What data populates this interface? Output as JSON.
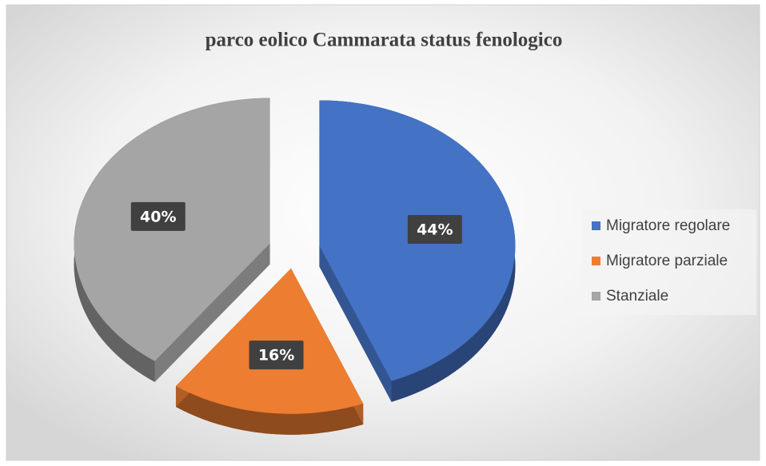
{
  "chart_data": {
    "type": "pie",
    "title": "parco eolico Cammarata status fenologico",
    "categories": [
      "Migratore regolare",
      "Migratore parziale",
      "Stanziale"
    ],
    "values": [
      44,
      16,
      40
    ],
    "value_labels": [
      "44%",
      "16%",
      "40%"
    ],
    "colors": [
      "#4472c4",
      "#ed7d31",
      "#a5a5a5"
    ],
    "legend": "right"
  }
}
